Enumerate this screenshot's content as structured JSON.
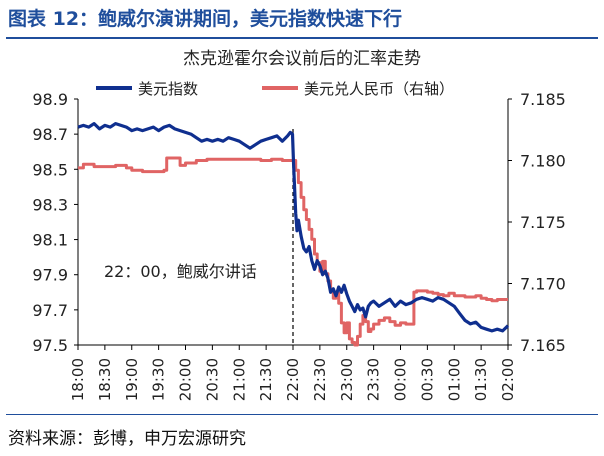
{
  "figure_title": "图表 12：鲍威尔演讲期间，美元指数快速下行",
  "source": "资料来源：彭博，申万宏源研究",
  "colors": {
    "usd": "#0f2f8f",
    "cny": "#e06464",
    "title": "#1f4e9c"
  },
  "chart_data": {
    "type": "line",
    "title": "杰克逊霍尔会议前后的汇率走势",
    "x_ticks": [
      "18:00",
      "18:30",
      "19:00",
      "19:30",
      "20:00",
      "20:30",
      "21:00",
      "21:30",
      "22:00",
      "22:30",
      "23:00",
      "23:30",
      "00:00",
      "00:30",
      "01:00",
      "01:30",
      "02:00"
    ],
    "y_left": {
      "ticks": [
        "98.9",
        "98.7",
        "98.5",
        "98.3",
        "98.1",
        "97.9",
        "97.7",
        "97.5"
      ],
      "range": [
        97.5,
        98.9
      ]
    },
    "y_right": {
      "ticks": [
        "7.185",
        "7.180",
        "7.175",
        "7.170",
        "7.165"
      ],
      "range": [
        7.165,
        7.185
      ]
    },
    "legend": {
      "position": "top",
      "series_left": "美元指数",
      "series_right": "美元兑人民币（右轴）"
    },
    "annotation": {
      "text": "22：00，鲍威尔讲话",
      "x_index": 8
    },
    "series": [
      {
        "name": "美元指数",
        "axis": "left",
        "x": [
          0,
          0.2,
          0.4,
          0.6,
          0.8,
          1.0,
          1.2,
          1.4,
          1.6,
          1.8,
          2.0,
          2.2,
          2.4,
          2.6,
          2.8,
          3.0,
          3.2,
          3.4,
          3.6,
          3.8,
          4.0,
          4.2,
          4.4,
          4.6,
          4.8,
          5.0,
          5.2,
          5.4,
          5.6,
          5.8,
          6.0,
          6.2,
          6.4,
          6.6,
          6.8,
          7.0,
          7.2,
          7.4,
          7.6,
          7.8,
          7.9,
          7.98,
          8.02,
          8.1,
          8.15,
          8.2,
          8.3,
          8.4,
          8.5,
          8.6,
          8.7,
          8.8,
          8.9,
          9.0,
          9.1,
          9.2,
          9.3,
          9.4,
          9.5,
          9.6,
          9.7,
          9.8,
          9.9,
          10.0,
          10.1,
          10.2,
          10.3,
          10.4,
          10.5,
          10.6,
          10.7,
          10.8,
          10.9,
          11.0,
          11.2,
          11.4,
          11.6,
          11.8,
          12.0,
          12.2,
          12.4,
          12.6,
          12.8,
          13.0,
          13.2,
          13.4,
          13.6,
          13.8,
          14.0,
          14.2,
          14.4,
          14.6,
          14.8,
          15.0,
          15.2,
          15.4,
          15.6,
          15.8,
          16.0
        ],
        "values": [
          98.74,
          98.75,
          98.74,
          98.76,
          98.73,
          98.75,
          98.74,
          98.76,
          98.75,
          98.74,
          98.72,
          98.73,
          98.72,
          98.73,
          98.74,
          98.72,
          98.74,
          98.75,
          98.73,
          98.72,
          98.71,
          98.7,
          98.68,
          98.66,
          98.67,
          98.66,
          98.67,
          98.66,
          98.68,
          98.67,
          98.66,
          98.64,
          98.62,
          98.64,
          98.66,
          98.67,
          98.68,
          98.69,
          98.66,
          98.69,
          98.71,
          98.7,
          98.54,
          98.25,
          98.15,
          98.21,
          98.12,
          98.05,
          98.03,
          98.06,
          97.98,
          97.93,
          97.98,
          97.95,
          97.9,
          97.92,
          97.88,
          97.8,
          97.82,
          97.78,
          97.83,
          97.8,
          97.84,
          97.79,
          97.75,
          97.72,
          97.69,
          97.73,
          97.7,
          97.71,
          97.66,
          97.72,
          97.74,
          97.75,
          97.72,
          97.74,
          97.76,
          97.72,
          97.75,
          97.73,
          97.74,
          97.76,
          97.77,
          97.76,
          97.75,
          97.77,
          97.76,
          97.74,
          97.72,
          97.68,
          97.64,
          97.62,
          97.63,
          97.6,
          97.59,
          97.58,
          97.59,
          97.58,
          97.61
        ]
      },
      {
        "name": "美元兑人民币（右轴）",
        "axis": "right",
        "x": [
          0,
          0.2,
          0.6,
          1.0,
          1.4,
          1.8,
          2.0,
          2.4,
          2.8,
          3.2,
          3.3,
          3.6,
          3.8,
          4.0,
          4.4,
          4.8,
          5.2,
          5.6,
          6.0,
          6.4,
          6.8,
          7.2,
          7.6,
          8.0,
          8.1,
          8.2,
          8.3,
          8.4,
          8.5,
          8.6,
          8.7,
          8.8,
          8.9,
          9.0,
          9.1,
          9.2,
          9.3,
          9.4,
          9.5,
          9.6,
          9.7,
          9.8,
          9.9,
          10.0,
          10.1,
          10.2,
          10.3,
          10.4,
          10.5,
          10.6,
          10.7,
          10.8,
          10.9,
          11.0,
          11.2,
          11.4,
          11.6,
          11.8,
          12.0,
          12.2,
          12.4,
          12.5,
          12.6,
          12.8,
          13.0,
          13.2,
          13.4,
          13.6,
          13.8,
          14.0,
          14.4,
          14.8,
          15.0,
          15.2,
          15.4,
          15.6,
          15.8,
          16.0
        ],
        "values": [
          7.1794,
          7.1797,
          7.1795,
          7.1795,
          7.1796,
          7.1794,
          7.1792,
          7.1791,
          7.1791,
          7.1792,
          7.1802,
          7.1802,
          7.1796,
          7.1798,
          7.18,
          7.1801,
          7.1801,
          7.1801,
          7.1801,
          7.1801,
          7.18,
          7.1801,
          7.18,
          7.18,
          7.1792,
          7.1782,
          7.177,
          7.176,
          7.1752,
          7.1744,
          7.1736,
          7.1724,
          7.1717,
          7.171,
          7.1718,
          7.1708,
          7.1702,
          7.1695,
          7.1688,
          7.1692,
          7.1684,
          7.1668,
          7.166,
          7.1668,
          7.1655,
          7.1652,
          7.165,
          7.1657,
          7.1667,
          7.1674,
          7.1669,
          7.1661,
          7.1663,
          7.1667,
          7.167,
          7.1672,
          7.1669,
          7.1666,
          7.1668,
          7.1667,
          7.1667,
          7.1693,
          7.1694,
          7.1694,
          7.1693,
          7.1692,
          7.1691,
          7.169,
          7.1692,
          7.169,
          7.1689,
          7.169,
          7.1688,
          7.1687,
          7.1686,
          7.1687,
          7.1687,
          7.1687
        ]
      }
    ]
  }
}
